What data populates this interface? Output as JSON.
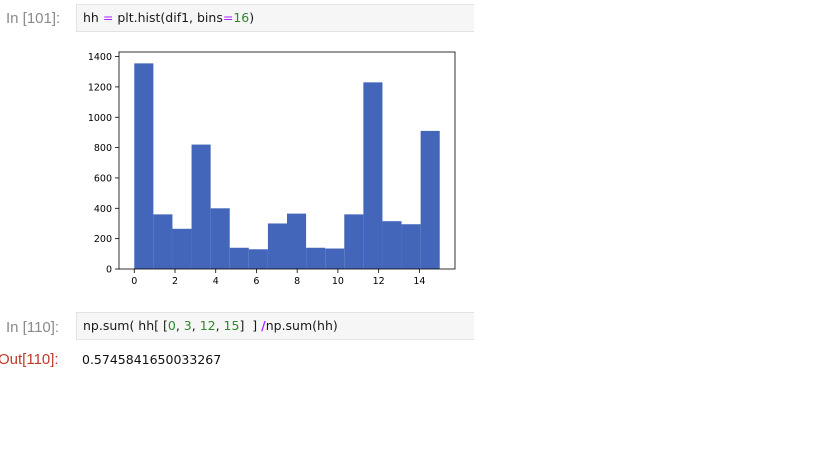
{
  "cell1": {
    "prompt": "In [101]:",
    "code": {
      "var": "hh",
      "eq": "=",
      "call": "plt.hist(dif1, bins",
      "eq2": "=",
      "bins": "16",
      "close": ")"
    }
  },
  "cell2": {
    "prompt": "In [110]:",
    "code": {
      "p1": "np.sum( hh[ [",
      "n1": "0",
      "c1": ", ",
      "n2": "3",
      "c2": ", ",
      "n3": "12",
      "c3": ", ",
      "n4": "15",
      "p2": "]  ] ",
      "op": "/",
      "p3": "np.sum(hh)"
    }
  },
  "output": {
    "prompt": "Out[110]:",
    "value": "0.5745841650033267"
  },
  "colors": {
    "bar": "#4366ba",
    "prompt_in": "#8a8a8a",
    "prompt_out": "#c0392b"
  },
  "chart_data": {
    "type": "bar",
    "title": "",
    "xlabel": "",
    "ylabel": "",
    "xlim": [
      -0.75,
      15.75
    ],
    "ylim": [
      0,
      1430
    ],
    "xticks": [
      0,
      2,
      4,
      6,
      8,
      10,
      12,
      14
    ],
    "yticks": [
      0,
      200,
      400,
      600,
      800,
      1000,
      1200,
      1400
    ],
    "bin_edges": [
      0,
      0.9375,
      1.875,
      2.8125,
      3.75,
      4.6875,
      5.625,
      6.5625,
      7.5,
      8.4375,
      9.375,
      10.3125,
      11.25,
      12.1875,
      13.125,
      14.0625,
      15
    ],
    "values": [
      1355,
      360,
      265,
      820,
      400,
      140,
      130,
      300,
      365,
      140,
      135,
      360,
      1230,
      315,
      295,
      910
    ]
  }
}
